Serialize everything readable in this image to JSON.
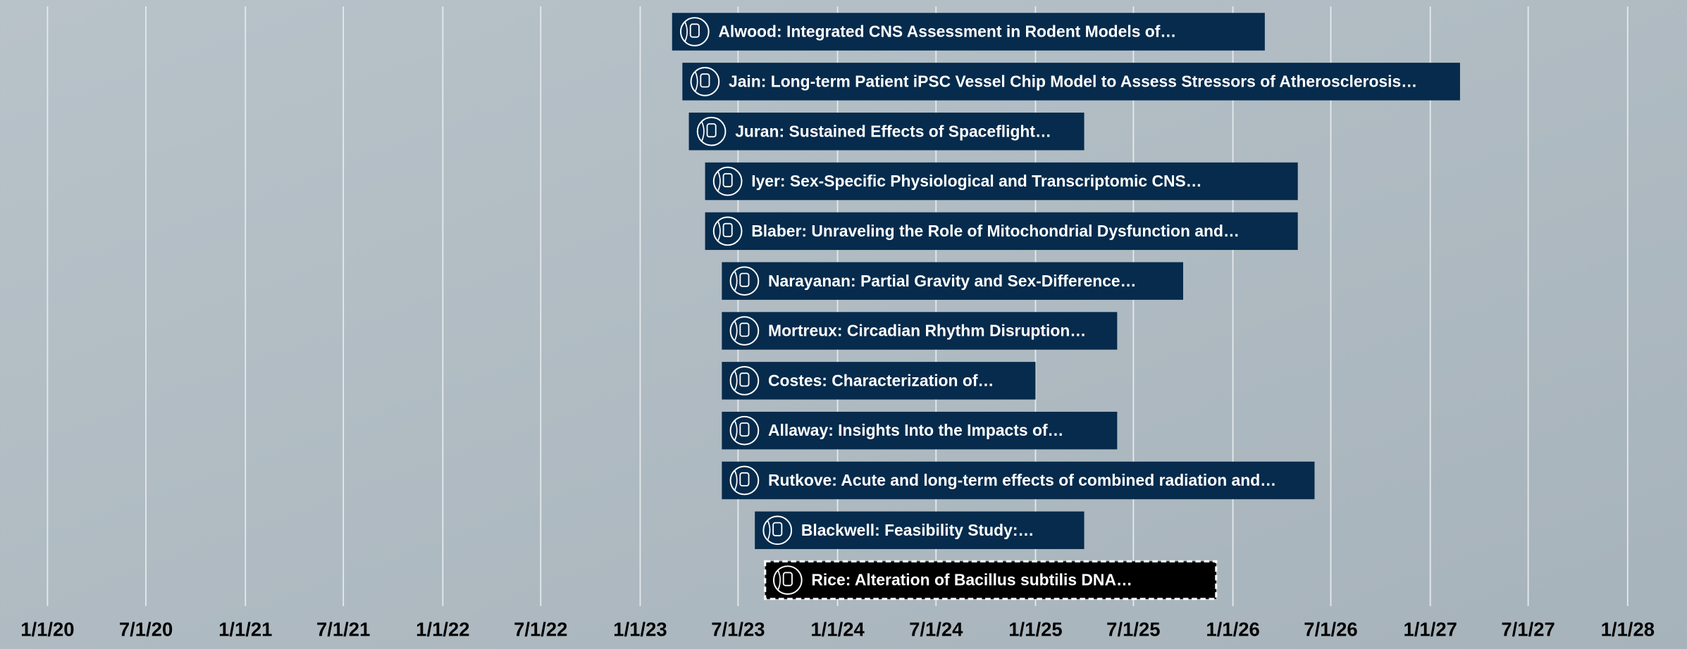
{
  "chart_data": {
    "type": "gantt",
    "xlim": [
      "2020-01-01",
      "2028-01-01"
    ],
    "xticks": [
      {
        "value": "2020-01-01",
        "label": "1/1/20"
      },
      {
        "value": "2020-07-01",
        "label": "7/1/20"
      },
      {
        "value": "2021-01-01",
        "label": "1/1/21"
      },
      {
        "value": "2021-07-01",
        "label": "7/1/21"
      },
      {
        "value": "2022-01-01",
        "label": "1/1/22"
      },
      {
        "value": "2022-07-01",
        "label": "7/1/22"
      },
      {
        "value": "2023-01-01",
        "label": "1/1/23"
      },
      {
        "value": "2023-07-01",
        "label": "7/1/23"
      },
      {
        "value": "2024-01-01",
        "label": "1/1/24"
      },
      {
        "value": "2024-07-01",
        "label": "7/1/24"
      },
      {
        "value": "2025-01-01",
        "label": "1/1/25"
      },
      {
        "value": "2025-07-01",
        "label": "7/1/25"
      },
      {
        "value": "2026-01-01",
        "label": "1/1/26"
      },
      {
        "value": "2026-07-01",
        "label": "7/1/26"
      },
      {
        "value": "2027-01-01",
        "label": "1/1/27"
      },
      {
        "value": "2027-07-01",
        "label": "7/1/27"
      },
      {
        "value": "2028-01-01",
        "label": "1/1/28"
      }
    ],
    "grid": true,
    "color": "#062b4c",
    "highlight_color": "#000000",
    "tasks": [
      {
        "label": "Alwood: Integrated CNS Assessment in Rodent Models of…",
        "start": "2023-03-01",
        "end": "2026-03-01"
      },
      {
        "label": "Jain: Long-term Patient iPSC Vessel Chip Model to Assess Stressors of Atherosclerosis…",
        "start": "2023-03-20",
        "end": "2027-02-25"
      },
      {
        "label": "Juran: Sustained Effects of Spaceflight…",
        "start": "2023-04-01",
        "end": "2025-04-01"
      },
      {
        "label": "Iyer: Sex-Specific Physiological and Transcriptomic CNS…",
        "start": "2023-05-01",
        "end": "2026-05-01"
      },
      {
        "label": "Blaber: Unraveling the Role of Mitochondrial Dysfunction and…",
        "start": "2023-05-01",
        "end": "2026-05-01"
      },
      {
        "label": "Narayanan: Partial Gravity and Sex-Difference…",
        "start": "2023-06-01",
        "end": "2025-10-01"
      },
      {
        "label": "Mortreux: Circadian Rhythm Disruption…",
        "start": "2023-06-01",
        "end": "2025-06-01"
      },
      {
        "label": "Costes: Characterization of…",
        "start": "2023-06-01",
        "end": "2025-01-01"
      },
      {
        "label": "Allaway: Insights Into the Impacts of…",
        "start": "2023-06-01",
        "end": "2025-06-01"
      },
      {
        "label": "Rutkove: Acute and long-term effects of combined radiation and…",
        "start": "2023-06-01",
        "end": "2026-06-01"
      },
      {
        "label": "Blackwell: Feasibility Study:…",
        "start": "2023-08-01",
        "end": "2025-04-01"
      },
      {
        "label": "Rice: Alteration of Bacillus subtilis DNA…",
        "start": "2023-08-20",
        "end": "2025-12-01",
        "highlighted": true
      }
    ]
  }
}
